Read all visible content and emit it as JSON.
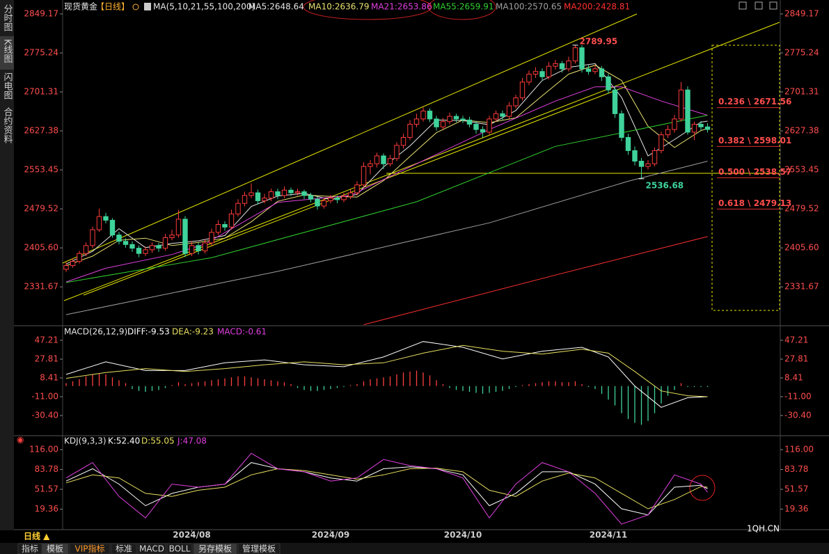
{
  "sidebar": [
    "分时图",
    "K线图",
    "闪电图",
    "合约资料"
  ],
  "chart_data": [
    {
      "type": "candlestick",
      "title": "现货黄金",
      "period": "【日线】",
      "ma_label": "MA(5,10,21,55,100,200)",
      "up_color": "#ff3b3b",
      "down_color": "#3fd39b",
      "ylim": [
        2258,
        2865
      ],
      "yticks": [
        2849.17,
        2775.24,
        2701.31,
        2627.38,
        2553.45,
        2479.52,
        {
          "value": 2405.6,
          "label": "2405.60"
        },
        2331.67
      ],
      "xticks": [
        {
          "value": 19,
          "label": "2024/08"
        },
        {
          "value": 40,
          "label": "2024/09"
        },
        {
          "value": 60,
          "label": "2024/10"
        },
        {
          "value": 82,
          "label": "2024/11"
        }
      ],
      "candles": [
        [
          2365,
          2378,
          2360,
          2372
        ],
        [
          2372,
          2386,
          2368,
          2380
        ],
        [
          2380,
          2400,
          2376,
          2395
        ],
        [
          2395,
          2416,
          2390,
          2410
        ],
        [
          2410,
          2446,
          2405,
          2440
        ],
        [
          2440,
          2480,
          2436,
          2465
        ],
        [
          2465,
          2472,
          2452,
          2458
        ],
        [
          2458,
          2462,
          2425,
          2430
        ],
        [
          2430,
          2436,
          2412,
          2418
        ],
        [
          2418,
          2424,
          2406,
          2412
        ],
        [
          2412,
          2418,
          2398,
          2405
        ],
        [
          2405,
          2410,
          2388,
          2395
        ],
        [
          2395,
          2408,
          2390,
          2402
        ],
        [
          2402,
          2416,
          2396,
          2410
        ],
        [
          2410,
          2415,
          2398,
          2405
        ],
        [
          2405,
          2432,
          2400,
          2425
        ],
        [
          2425,
          2440,
          2420,
          2430
        ],
        [
          2430,
          2478,
          2425,
          2460
        ],
        [
          2460,
          2466,
          2388,
          2395
        ],
        [
          2395,
          2418,
          2390,
          2410
        ],
        [
          2410,
          2415,
          2393,
          2400
        ],
        [
          2400,
          2422,
          2395,
          2415
        ],
        [
          2415,
          2442,
          2410,
          2435
        ],
        [
          2435,
          2458,
          2430,
          2450
        ],
        [
          2450,
          2456,
          2438,
          2445
        ],
        [
          2445,
          2478,
          2440,
          2470
        ],
        [
          2470,
          2498,
          2465,
          2490
        ],
        [
          2490,
          2512,
          2484,
          2505
        ],
        [
          2505,
          2528,
          2500,
          2510
        ],
        [
          2510,
          2516,
          2488,
          2495
        ],
        [
          2495,
          2508,
          2490,
          2500
        ],
        [
          2500,
          2518,
          2494,
          2512
        ],
        [
          2512,
          2518,
          2498,
          2505
        ],
        [
          2505,
          2522,
          2500,
          2515
        ],
        [
          2515,
          2520,
          2504,
          2510
        ],
        [
          2510,
          2518,
          2505,
          2512
        ],
        [
          2512,
          2516,
          2498,
          2505
        ],
        [
          2505,
          2510,
          2492,
          2498
        ],
        [
          2498,
          2503,
          2478,
          2485
        ],
        [
          2485,
          2500,
          2480,
          2495
        ],
        [
          2495,
          2506,
          2490,
          2500
        ],
        [
          2500,
          2505,
          2490,
          2497
        ],
        [
          2497,
          2510,
          2492,
          2503
        ],
        [
          2503,
          2516,
          2498,
          2510
        ],
        [
          2510,
          2532,
          2505,
          2525
        ],
        [
          2525,
          2568,
          2520,
          2560
        ],
        [
          2560,
          2572,
          2545,
          2565
        ],
        [
          2565,
          2586,
          2558,
          2580
        ],
        [
          2580,
          2585,
          2555,
          2565
        ],
        [
          2565,
          2582,
          2560,
          2575
        ],
        [
          2575,
          2606,
          2570,
          2600
        ],
        [
          2600,
          2622,
          2594,
          2615
        ],
        [
          2615,
          2648,
          2610,
          2640
        ],
        [
          2640,
          2660,
          2634,
          2650
        ],
        [
          2650,
          2672,
          2645,
          2665
        ],
        [
          2665,
          2670,
          2644,
          2650
        ],
        [
          2650,
          2656,
          2628,
          2635
        ],
        [
          2635,
          2652,
          2630,
          2645
        ],
        [
          2645,
          2662,
          2640,
          2655
        ],
        [
          2655,
          2660,
          2644,
          2650
        ],
        [
          2650,
          2656,
          2642,
          2648
        ],
        [
          2648,
          2654,
          2634,
          2640
        ],
        [
          2640,
          2646,
          2622,
          2630
        ],
        [
          2630,
          2636,
          2615,
          2625
        ],
        [
          2625,
          2656,
          2620,
          2650
        ],
        [
          2650,
          2666,
          2645,
          2660
        ],
        [
          2660,
          2666,
          2648,
          2655
        ],
        [
          2655,
          2682,
          2650,
          2675
        ],
        [
          2675,
          2696,
          2670,
          2690
        ],
        [
          2690,
          2728,
          2685,
          2720
        ],
        [
          2720,
          2742,
          2714,
          2735
        ],
        [
          2735,
          2748,
          2728,
          2740
        ],
        [
          2740,
          2746,
          2722,
          2730
        ],
        [
          2730,
          2758,
          2725,
          2750
        ],
        [
          2750,
          2762,
          2744,
          2755
        ],
        [
          2755,
          2760,
          2738,
          2745
        ],
        [
          2745,
          2768,
          2740,
          2760
        ],
        [
          2760,
          2789.95,
          2755,
          2785
        ],
        [
          2785,
          2790,
          2738,
          2745
        ],
        [
          2745,
          2752,
          2734,
          2740
        ],
        [
          2740,
          2752,
          2735,
          2745
        ],
        [
          2745,
          2750,
          2722,
          2730
        ],
        [
          2730,
          2736,
          2698,
          2705
        ],
        [
          2705,
          2712,
          2652,
          2660
        ],
        [
          2660,
          2666,
          2608,
          2615
        ],
        [
          2615,
          2622,
          2582,
          2590
        ],
        [
          2590,
          2598,
          2562,
          2570
        ],
        [
          2570,
          2576,
          2536.68,
          2560
        ],
        [
          2560,
          2572,
          2554,
          2565
        ],
        [
          2565,
          2596,
          2560,
          2590
        ],
        [
          2590,
          2626,
          2585,
          2620
        ],
        [
          2620,
          2638,
          2614,
          2630
        ],
        [
          2630,
          2658,
          2624,
          2650
        ],
        [
          2650,
          2720,
          2645,
          2705
        ],
        [
          2705,
          2712,
          2620,
          2625
        ],
        [
          2625,
          2645,
          2610,
          2640
        ],
        [
          2640,
          2646,
          2628,
          2635
        ],
        [
          2635,
          2642,
          2624,
          2630
        ]
      ],
      "series": [
        {
          "name": "MA5:2648.64",
          "color": "#e6e6e6",
          "x": [
            0,
            4,
            8,
            12,
            16,
            20,
            24,
            28,
            32,
            36,
            40,
            44,
            48,
            52,
            56,
            60,
            64,
            68,
            72,
            76,
            80,
            84,
            88,
            92,
            96,
            97
          ],
          "values": [
            2375,
            2399,
            2442,
            2406,
            2414,
            2419,
            2429,
            2484,
            2504,
            2509,
            2497,
            2507,
            2559,
            2599,
            2648,
            2647,
            2639,
            2666,
            2723,
            2748,
            2755,
            2691,
            2580,
            2611,
            2644,
            2646
          ]
        },
        {
          "name": "MA10:2636.79",
          "color": "#e8e070",
          "x": [
            0,
            4,
            8,
            12,
            16,
            20,
            24,
            28,
            32,
            36,
            40,
            44,
            48,
            52,
            56,
            60,
            64,
            68,
            72,
            76,
            80,
            84,
            88,
            92,
            96,
            97
          ],
          "values": [
            2372,
            2390,
            2420,
            2424,
            2410,
            2416,
            2424,
            2455,
            2494,
            2506,
            2503,
            2502,
            2533,
            2579,
            2624,
            2648,
            2643,
            2652,
            2694,
            2735,
            2752,
            2723,
            2636,
            2596,
            2628,
            2632
          ]
        },
        {
          "name": "MA21:2653.86",
          "color": "#e040e0",
          "x": [
            0,
            6,
            16,
            21,
            32,
            43,
            53,
            64,
            74,
            80,
            84,
            90,
            97
          ],
          "values": [
            2341,
            2367,
            2393,
            2413,
            2492,
            2505,
            2565,
            2630,
            2684,
            2711,
            2711,
            2684,
            2657
          ]
        },
        {
          "name": "MA55:2659.91",
          "color": "#30d030",
          "x": [
            0,
            22,
            53,
            74,
            97
          ],
          "values": [
            2340,
            2387,
            2493,
            2598,
            2657
          ]
        },
        {
          "name": "MA100:2570.65",
          "color": "#a0a0a0",
          "x": [
            0,
            32,
            64,
            85,
            97
          ],
          "values": [
            2279,
            2361,
            2453,
            2532,
            2570
          ]
        },
        {
          "name": "MA200:2428.81",
          "color": "#ff3030",
          "x": [
            45,
            74,
            97
          ],
          "values": [
            2260,
            2354,
            2427
          ]
        }
      ],
      "fib_levels": [
        {
          "label": "0.236 \\ 2671.56",
          "value": 2671.56
        },
        {
          "label": "0.382 \\ 2598.01",
          "value": 2598.01
        },
        {
          "label": "0.500 \\ 2538.57",
          "value": 2538.57
        },
        {
          "label": "0.618 \\ 2479.13",
          "value": 2479.13
        }
      ]
    },
    {
      "type": "macd",
      "title": "MACD(26,12,9)",
      "macd_label": "MACD:-0.61",
      "up_color": "#ff4040",
      "down_color": "#3fd39b",
      "ylim": [
        -50.5,
        55.1
      ],
      "yticks": [
        47.21,
        27.81,
        8.41,
        {
          "value": -11,
          "label": "-11.00"
        },
        {
          "value": -30.4,
          "label": "-30.40"
        }
      ],
      "values": [
        3,
        5,
        7,
        10,
        12,
        13,
        12,
        9,
        6,
        3,
        -3,
        -5,
        -6,
        -5,
        -4,
        -2,
        1,
        4,
        2,
        3,
        4,
        5,
        6,
        7,
        8,
        9,
        10,
        10,
        9,
        8,
        7,
        6,
        5,
        4,
        2,
        -2,
        -4,
        -5,
        -5,
        -4,
        -3,
        -2,
        -1,
        1,
        2,
        5,
        7,
        8,
        9,
        10,
        12,
        14,
        15,
        16,
        14,
        11,
        6,
        2,
        -2,
        -4,
        -5,
        -6,
        -7,
        -8,
        -7,
        -6,
        -5,
        -3,
        -1,
        1,
        2,
        3,
        4,
        5,
        5,
        4,
        4,
        5,
        2,
        -1,
        -3,
        -8,
        -14,
        -20,
        -28,
        -34,
        -38,
        -40,
        -36,
        -28,
        -18,
        -10,
        -4,
        3,
        -1,
        -1,
        -1,
        -1
      ],
      "series": [
        {
          "name": "DIFF:-9.53",
          "color": "#ffffff",
          "x": [
            0,
            6,
            12,
            18,
            24,
            30,
            36,
            42,
            48,
            54,
            60,
            66,
            72,
            78,
            82,
            86,
            90,
            94,
            97
          ],
          "values": [
            12,
            25,
            16,
            16,
            24,
            27,
            22,
            20,
            30,
            46,
            40,
            28,
            36,
            40,
            30,
            0,
            -22,
            -12,
            -11
          ]
        },
        {
          "name": "DEA:-9.23",
          "color": "#e8e060",
          "x": [
            0,
            6,
            12,
            18,
            24,
            30,
            36,
            42,
            48,
            54,
            60,
            66,
            72,
            78,
            82,
            86,
            90,
            94,
            97
          ],
          "values": [
            8,
            14,
            18,
            15,
            18,
            22,
            25,
            22,
            24,
            34,
            42,
            36,
            33,
            38,
            34,
            15,
            -5,
            -10,
            -11
          ]
        }
      ]
    },
    {
      "type": "kdj",
      "title": "KDJ(9,3,3)",
      "ylim": [
        -12.8,
        126.2
      ],
      "yticks": [
        {
          "value": 116,
          "label": "116.00"
        },
        83.78,
        51.57,
        19.36
      ],
      "series": [
        {
          "name": "K:52.40",
          "color": "#ffffff",
          "x": [
            0,
            4,
            8,
            12,
            16,
            20,
            24,
            28,
            32,
            36,
            40,
            44,
            48,
            52,
            56,
            60,
            64,
            68,
            72,
            76,
            80,
            84,
            88,
            92,
            96,
            97
          ],
          "values": [
            65,
            85,
            60,
            25,
            45,
            55,
            60,
            95,
            85,
            80,
            70,
            65,
            85,
            88,
            85,
            75,
            25,
            45,
            80,
            80,
            60,
            20,
            10,
            55,
            58,
            52.4
          ]
        },
        {
          "name": "D:55.05",
          "color": "#e8e060",
          "x": [
            0,
            4,
            8,
            12,
            16,
            20,
            24,
            28,
            32,
            36,
            40,
            44,
            48,
            52,
            56,
            60,
            64,
            68,
            72,
            76,
            80,
            84,
            88,
            92,
            96,
            97
          ],
          "values": [
            62,
            75,
            70,
            45,
            40,
            50,
            55,
            75,
            85,
            82,
            75,
            68,
            75,
            85,
            86,
            80,
            50,
            40,
            65,
            78,
            70,
            45,
            20,
            35,
            56,
            55.05
          ]
        },
        {
          "name": "J:47.08",
          "color": "#e040e0",
          "x": [
            0,
            4,
            8,
            12,
            16,
            20,
            24,
            28,
            32,
            36,
            40,
            44,
            48,
            52,
            56,
            60,
            64,
            68,
            72,
            76,
            80,
            84,
            88,
            92,
            96,
            97
          ],
          "values": [
            70,
            95,
            40,
            5,
            60,
            55,
            60,
            110,
            85,
            80,
            65,
            70,
            100,
            90,
            85,
            70,
            5,
            60,
            95,
            80,
            45,
            -5,
            10,
            75,
            60,
            47.08
          ]
        }
      ]
    }
  ],
  "bottom_bar": {
    "period": "日线 ▲",
    "tabs": [
      "指标",
      "模板",
      "VIP指标",
      "标准",
      "MACD",
      "BOLL",
      "另存模板",
      "管理模板"
    ]
  },
  "watermark": "1QH.CN"
}
